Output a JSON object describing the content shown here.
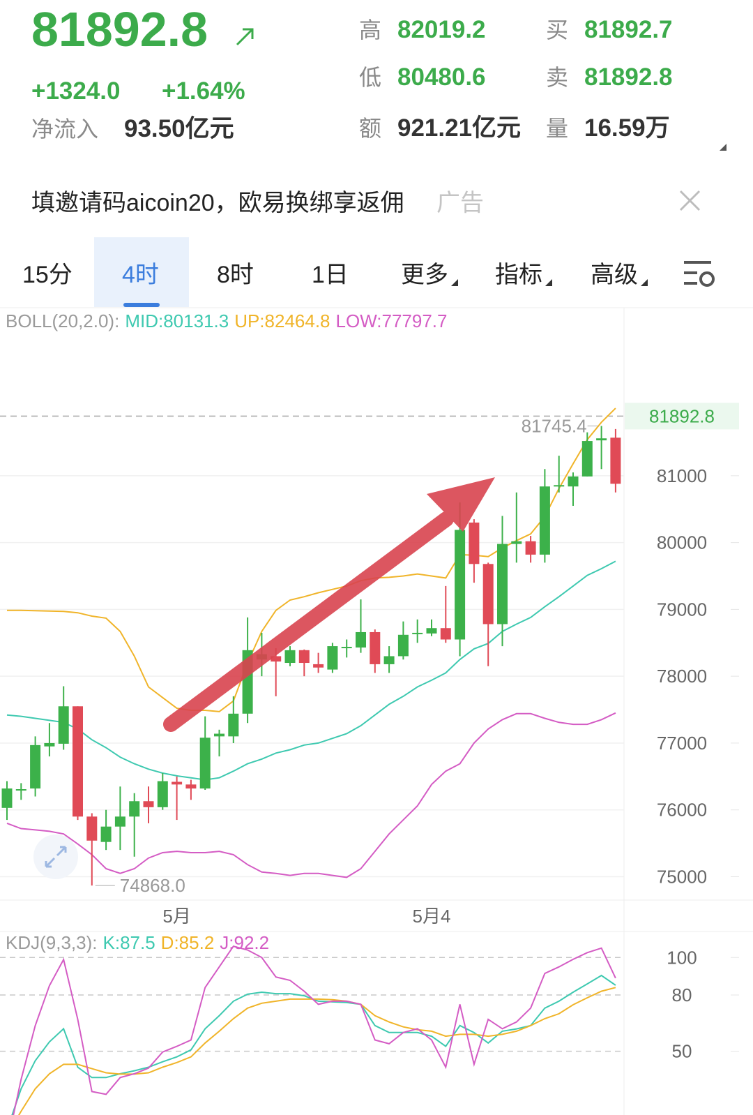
{
  "header": {
    "price": "81892.8",
    "change": "+1324.0",
    "change_pct": "+1.64%",
    "net_inflow_label": "净流入",
    "net_inflow": "93.50亿元",
    "stats": [
      {
        "label": "高",
        "value": "82019.2"
      },
      {
        "label": "买",
        "value": "81892.7"
      },
      {
        "label": "低",
        "value": "80480.6"
      },
      {
        "label": "卖",
        "value": "81892.8"
      },
      {
        "label": "额",
        "value": "921.21亿元"
      },
      {
        "label": "量",
        "value": "16.59万"
      }
    ]
  },
  "ad": {
    "text": "填邀请码aicoin20，欧易换绑享返佣",
    "tag": "广告"
  },
  "tabs": [
    "15分",
    "4时",
    "8时",
    "1日",
    "更多",
    "指标",
    "高级"
  ],
  "chart_data": [
    {
      "type": "candlestick",
      "indicator": "BOLL(20,2.0):",
      "categories": [
        null,
        null,
        null,
        null,
        null,
        null,
        null,
        null,
        null,
        null,
        null,
        null,
        "5月",
        null,
        null,
        null,
        null,
        null,
        null,
        null,
        null,
        null,
        null,
        null,
        null,
        null,
        null,
        null,
        null,
        null,
        "5月4",
        null,
        null,
        null,
        null,
        null,
        null,
        null,
        null,
        null,
        null,
        null,
        null,
        null
      ],
      "open": [
        76030,
        76300,
        76320,
        76950,
        76990,
        77550,
        75900,
        75520,
        75750,
        75900,
        76130,
        76040,
        76420,
        76380,
        76320,
        77100,
        77100,
        77440,
        78250,
        78300,
        78200,
        78390,
        78180,
        78100,
        78430,
        78430,
        78660,
        78180,
        78300,
        78640,
        78640,
        78720,
        78550,
        80300,
        79680,
        78780,
        79980,
        80020,
        79820,
        80840,
        80840,
        80990,
        81530,
        81570
      ],
      "high": [
        76430,
        76400,
        77100,
        77300,
        77850,
        77550,
        75950,
        76000,
        76350,
        76250,
        76350,
        76550,
        76500,
        76450,
        77400,
        77200,
        77700,
        78880,
        78650,
        78420,
        78450,
        78400,
        78350,
        78500,
        78550,
        79150,
        78700,
        78450,
        78820,
        78850,
        78850,
        79350,
        80600,
        80350,
        79700,
        80400,
        80750,
        80100,
        81100,
        81300,
        81050,
        81650,
        81745.4,
        81700
      ],
      "low": [
        75850,
        76150,
        76200,
        76800,
        76900,
        75850,
        74868,
        75400,
        75400,
        75300,
        75800,
        76000,
        75850,
        76150,
        76300,
        76800,
        77000,
        77300,
        78000,
        77700,
        78150,
        78000,
        78050,
        78050,
        78280,
        78350,
        78050,
        78050,
        78250,
        78500,
        78600,
        78500,
        78300,
        79400,
        78150,
        78450,
        79700,
        79700,
        79700,
        80750,
        80550,
        80990,
        81100,
        80750
      ],
      "close": [
        76320,
        76310,
        76970,
        77000,
        77550,
        75900,
        75540,
        75750,
        75900,
        76130,
        76040,
        76430,
        76380,
        76320,
        77080,
        77140,
        77440,
        78390,
        78330,
        78220,
        78390,
        78200,
        78130,
        78450,
        78440,
        78660,
        78180,
        78300,
        78620,
        78650,
        78720,
        78550,
        80190,
        79680,
        78780,
        79980,
        80020,
        79820,
        80840,
        80860,
        80990,
        81520,
        81560,
        80880
      ],
      "up_color": "#3cb14a",
      "down_color": "#e04a56",
      "low_label": "74868.0",
      "last_price": 81892.8,
      "series": [
        {
          "name": "MID:80131.3",
          "color": "#3ec9b0",
          "values": [
            77420,
            77400,
            77370,
            77340,
            77310,
            77210,
            77050,
            76930,
            76790,
            76690,
            76610,
            76550,
            76510,
            76480,
            76450,
            76480,
            76580,
            76690,
            76760,
            76850,
            76900,
            76970,
            77000,
            77070,
            77140,
            77260,
            77420,
            77580,
            77700,
            77840,
            77940,
            78050,
            78250,
            78410,
            78490,
            78670,
            78780,
            78880,
            79040,
            79190,
            79350,
            79510,
            79610,
            79720
          ]
        },
        {
          "name": "UP:82464.8",
          "color": "#f0b429",
          "values": [
            78985,
            78985,
            78980,
            78975,
            78970,
            78950,
            78900,
            78870,
            78670,
            78300,
            77840,
            77680,
            77520,
            77490,
            77490,
            77470,
            77630,
            78200,
            78670,
            78985,
            79140,
            79190,
            79250,
            79300,
            79350,
            79430,
            79470,
            79480,
            79500,
            79530,
            79500,
            79470,
            79820,
            79810,
            79790,
            79920,
            80030,
            80130,
            80390,
            80810,
            81180,
            81540,
            81800,
            82010
          ]
        },
        {
          "name": "LOW:77797.7",
          "color": "#d45cc4",
          "values": [
            75800,
            75720,
            75700,
            75680,
            75640,
            75490,
            75330,
            75120,
            75050,
            75120,
            75280,
            75360,
            75380,
            75360,
            75360,
            75380,
            75330,
            75180,
            75070,
            75050,
            75020,
            75050,
            75050,
            75020,
            74990,
            75120,
            75380,
            75640,
            75850,
            76060,
            76380,
            76580,
            76690,
            77000,
            77210,
            77350,
            77440,
            77440,
            77370,
            77310,
            77280,
            77280,
            77350,
            77450
          ]
        }
      ],
      "ylim": [
        74650,
        83160
      ],
      "yticks": [
        75000,
        76000,
        77000,
        78000,
        79000,
        80000,
        81000
      ],
      "grid": true
    },
    {
      "type": "line",
      "indicator": "KDJ(9,3,3):",
      "series": [
        {
          "name": "K:87.5",
          "color": "#3ec9b0",
          "values": [
            8,
            30,
            45,
            55,
            62,
            41.5,
            36,
            36,
            38,
            39.6,
            41.5,
            44.4,
            47,
            50.7,
            62,
            69,
            76.7,
            80.4,
            81.5,
            80.7,
            80.7,
            79.6,
            76.7,
            76.3,
            76,
            75,
            63.7,
            60,
            60,
            60,
            58,
            52.6,
            63.7,
            60,
            54.4,
            60.7,
            61.9,
            63.7,
            73,
            76.7,
            81.5,
            85.9,
            90.4,
            85.2
          ]
        },
        {
          "name": "D:85.2",
          "color": "#f0b429",
          "values": [
            5,
            18,
            30,
            38,
            43,
            43,
            40.7,
            38.5,
            37.8,
            37.8,
            38.5,
            41.5,
            44,
            47,
            54.4,
            60.7,
            67.4,
            73,
            75.6,
            76.7,
            77.8,
            77.8,
            77.8,
            77.5,
            76.7,
            75,
            69,
            65.6,
            63,
            61.5,
            60.7,
            58,
            59,
            59,
            58,
            59,
            60.7,
            63.7,
            67.4,
            70,
            74.8,
            78.5,
            82,
            84
          ]
        },
        {
          "name": "J:92.2",
          "color": "#d45cc4",
          "values": [
            0,
            35,
            63.7,
            85,
            98.9,
            67,
            28.5,
            27,
            36,
            38,
            41,
            49.6,
            52.6,
            56,
            84,
            95,
            106,
            104,
            100,
            89.6,
            87.8,
            82,
            75,
            76.7,
            76.7,
            75,
            56,
            54,
            60,
            62,
            56,
            41.5,
            75,
            43,
            67,
            62,
            65.6,
            73,
            91.5,
            95,
            99,
            102.6,
            105,
            89
          ]
        }
      ],
      "ylim": [
        16,
        112
      ],
      "yticks": [
        50,
        80,
        100
      ],
      "grid": true
    }
  ]
}
